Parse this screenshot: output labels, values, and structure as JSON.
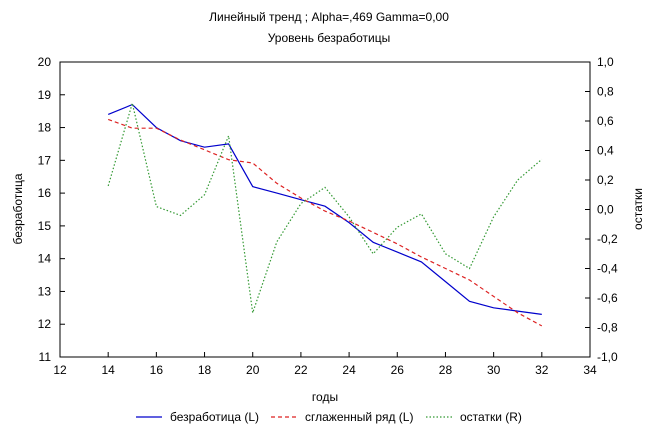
{
  "chart_data": {
    "type": "line",
    "title": "Линейный тренд ; Alpha=,469 Gamma=0,00",
    "subtitle": "Уровень безработицы",
    "xlabel": "годы",
    "ylabel_left": "безработица",
    "ylabel_right": "остатки",
    "xlim": [
      12,
      34
    ],
    "x_ticks": [
      "12",
      "14",
      "16",
      "18",
      "20",
      "22",
      "24",
      "26",
      "28",
      "30",
      "32",
      "34"
    ],
    "ylim_left": [
      11,
      20
    ],
    "y_left_ticks": [
      "11",
      "12",
      "13",
      "14",
      "15",
      "16",
      "17",
      "18",
      "19",
      "20"
    ],
    "ylim_right": [
      -1.0,
      1.0
    ],
    "y_right_ticks": [
      "-1,0",
      "-0,8",
      "-0,6",
      "-0,4",
      "-0,2",
      "0,0",
      "0,2",
      "0,4",
      "0,6",
      "0,8",
      "1,0"
    ],
    "grid": false,
    "legend_position": "bottom",
    "x": [
      14,
      15,
      16,
      17,
      18,
      19,
      20,
      21,
      22,
      23,
      24,
      25,
      26,
      27,
      28,
      29,
      30,
      31,
      32
    ],
    "series": [
      {
        "name": "безработица (L)",
        "axis": "left",
        "style": "solid",
        "color": "#0000cc",
        "values": [
          18.4,
          18.7,
          18.0,
          17.6,
          17.4,
          17.5,
          16.2,
          16.0,
          15.8,
          15.6,
          15.1,
          14.5,
          14.2,
          13.9,
          13.3,
          12.7,
          12.5,
          12.4,
          12.3
        ]
      },
      {
        "name": "сглаженный ряд (L)",
        "axis": "left",
        "style": "dashed",
        "color": "#dd2222",
        "values": [
          18.25,
          17.98,
          17.98,
          17.62,
          17.32,
          17.02,
          16.92,
          16.3,
          15.85,
          15.45,
          15.15,
          14.8,
          14.45,
          14.05,
          13.7,
          13.35,
          12.85,
          12.35,
          11.95
        ]
      },
      {
        "name": "остатки (R)",
        "axis": "right",
        "style": "dotted",
        "color": "#339933",
        "values": [
          0.16,
          0.72,
          0.02,
          -0.04,
          0.1,
          0.5,
          -0.7,
          -0.22,
          0.04,
          0.15,
          -0.05,
          -0.3,
          -0.12,
          -0.03,
          -0.3,
          -0.4,
          -0.05,
          0.2,
          0.34
        ]
      }
    ]
  }
}
